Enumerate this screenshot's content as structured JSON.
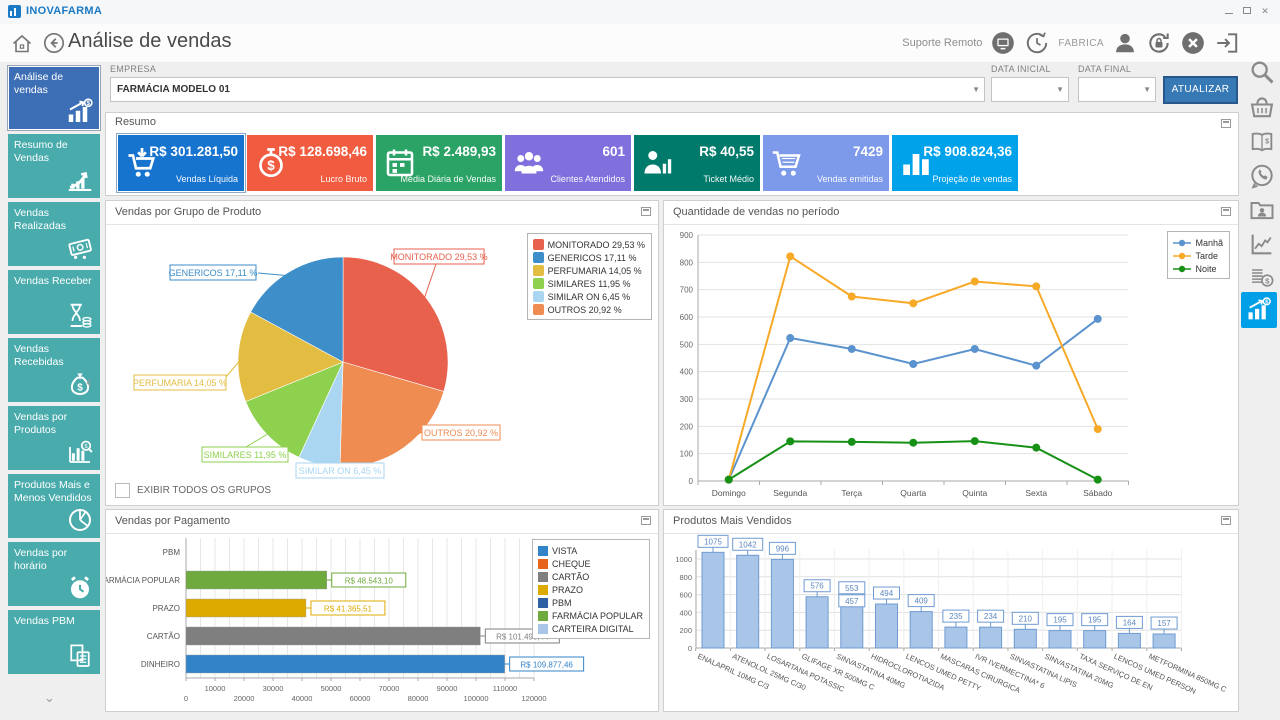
{
  "titlebar": {
    "app_name": "INOVAFARMA"
  },
  "header": {
    "title": "Análise de vendas",
    "suporte_remoto_label": "Suporte Remoto",
    "user_label": "FABRICA",
    "icons": [
      "home-icon",
      "back-icon",
      "remote-monitor-icon",
      "history-icon",
      "user-icon",
      "lock-refresh-icon",
      "close-icon",
      "exit-icon"
    ]
  },
  "sidebar": {
    "items": [
      {
        "label": "Análise de vendas",
        "icon": "sales-analysis",
        "active": true
      },
      {
        "label": "Resumo de Vendas",
        "icon": "growth"
      },
      {
        "label": "Vendas Realizadas",
        "icon": "money-note"
      },
      {
        "label": "Vendas Receber",
        "icon": "hourglass-money"
      },
      {
        "label": "Vendas Recebidas",
        "icon": "money-bag"
      },
      {
        "label": "Vendas por Produtos",
        "icon": "chart-search"
      },
      {
        "label": "Produtos Mais e Menos Vendidos",
        "icon": "pie"
      },
      {
        "label": "Vendas por horário",
        "icon": "alarm"
      },
      {
        "label": "Vendas PBM",
        "icon": "docs"
      }
    ]
  },
  "rightbar": {
    "icons": [
      {
        "name": "search-icon",
        "icon": "search"
      },
      {
        "name": "basket-icon",
        "icon": "basket"
      },
      {
        "name": "price-book-icon",
        "icon": "book"
      },
      {
        "name": "whatsapp-icon",
        "icon": "whatsapp"
      },
      {
        "name": "contacts-folder-icon",
        "icon": "folder-user"
      },
      {
        "name": "stats-icon",
        "icon": "stats"
      },
      {
        "name": "coins-icon",
        "icon": "coins"
      },
      {
        "name": "sales-analysis-active-icon",
        "icon": "sales-analysis",
        "active": true
      }
    ]
  },
  "filters": {
    "empresa_label": "EMPRESA",
    "empresa_value": "FARMÁCIA MODELO 01",
    "data_inicial_label": "DATA INICIAL",
    "data_inicial_value": "",
    "data_final_label": "DATA FINAL",
    "data_final_value": "",
    "atualizar_label": "ATUALIZAR"
  },
  "resumo": {
    "title": "Resumo",
    "cards": [
      {
        "value": "R$ 301.281,50",
        "label": "Vendas Líquida",
        "color": "#1673ce",
        "icon": "cart-down",
        "selected": true
      },
      {
        "value": "R$ 128.698,46",
        "label": "Lucro Bruto",
        "color": "#f15b40",
        "icon": "stopwatch"
      },
      {
        "value": "R$ 2.489,93",
        "label": "Média Diária de Vendas",
        "color": "#2ba367",
        "icon": "calendar"
      },
      {
        "value": "601",
        "label": "Clientes Atendidos",
        "color": "#8070dd",
        "icon": "users"
      },
      {
        "value": "R$ 40,55",
        "label": "Ticket Médio",
        "color": "#007a6b",
        "icon": "person-chart"
      },
      {
        "value": "7429",
        "label": "Vendas emitidas",
        "color": "#7d99ea",
        "icon": "cart"
      },
      {
        "value": "R$ 908.824,36",
        "label": "Projeção de vendas",
        "color": "#00a2e9",
        "icon": "bars"
      }
    ]
  },
  "chart_data": [
    {
      "type": "pie",
      "title": "Vendas por Grupo de Produto",
      "slices": [
        {
          "label": "MONITORADO",
          "pct": 29.53,
          "text": "MONITORADO 29,53 %",
          "color": "#e8614d"
        },
        {
          "label": "GENERICOS",
          "pct": 17.11,
          "text": "GENERICOS 17,11 %",
          "color": "#3d8ec9"
        },
        {
          "label": "PERFUMARIA",
          "pct": 14.05,
          "text": "PERFUMARIA 14,05 %",
          "color": "#e3bc42"
        },
        {
          "label": "SIMILARES",
          "pct": 11.95,
          "text": "SIMILARES 11,95 %",
          "color": "#8ed14f"
        },
        {
          "label": "SIMILAR ON",
          "pct": 6.45,
          "text": "SIMILAR ON 6,45 %",
          "color": "#aad6f2"
        },
        {
          "label": "OUTROS",
          "pct": 20.92,
          "text": "OUTROS 20,92 %",
          "color": "#ef8c51"
        }
      ],
      "clockwise_order_from_top": [
        0,
        5,
        4,
        3,
        2,
        1
      ],
      "legend_position": "top-right",
      "checkbox_label": "EXIBIR TODOS OS GRUPOS",
      "checkbox_checked": false
    },
    {
      "type": "line",
      "title": "Quantidade de vendas no período",
      "x": [
        "Domingo",
        "Segunda",
        "Terça",
        "Quarta",
        "Quinta",
        "Sexta",
        "Sábado"
      ],
      "series": [
        {
          "name": "Manhã",
          "color": "#5b93ce",
          "values": [
            5,
            523,
            483,
            428,
            483,
            422,
            593
          ]
        },
        {
          "name": "Tarde",
          "color": "#f7a928",
          "values": [
            5,
            822,
            675,
            650,
            730,
            712,
            190
          ]
        },
        {
          "name": "Noite",
          "color": "#169116",
          "values": [
            5,
            145,
            143,
            140,
            146,
            122,
            5
          ]
        }
      ],
      "ylim": [
        0,
        900
      ],
      "ytick_step": 100,
      "grid": "horizontal",
      "legend_position": "top-right"
    },
    {
      "type": "bar-h",
      "title": "Vendas por Pagamento",
      "categories": [
        "PBM",
        "FARMÁCIA POPULAR",
        "PRAZO",
        "CARTÃO",
        "DINHEIRO"
      ],
      "values": [
        0,
        48543.1,
        41365.51,
        101495.44,
        109877.46
      ],
      "value_labels": [
        "",
        "R$ 48.543,10",
        "R$ 41.365,51",
        "R$ 101.495,44",
        "R$ 109.877,46"
      ],
      "bar_colors": [
        "#2e5fa3",
        "#6faa3e",
        "#ddab00",
        "#7f7f7f",
        "#3383c8"
      ],
      "xlim": [
        0,
        120000
      ],
      "xticks": [
        0,
        10000,
        20000,
        30000,
        40000,
        50000,
        60000,
        70000,
        80000,
        90000,
        100000,
        110000,
        120000
      ],
      "legend": [
        {
          "label": "VISTA",
          "color": "#3383c8"
        },
        {
          "label": "CHEQUE",
          "color": "#e8641b"
        },
        {
          "label": "CARTÃO",
          "color": "#7f7f7f"
        },
        {
          "label": "PRAZO",
          "color": "#ddab00"
        },
        {
          "label": "PBM",
          "color": "#2e5fa3"
        },
        {
          "label": "FARMÁCIA POPULAR",
          "color": "#6faa3e"
        },
        {
          "label": "CARTEIRA DIGITAL",
          "color": "#a9c6e8"
        }
      ]
    },
    {
      "type": "bar-v",
      "title": "Produtos Mais Vendidos",
      "categories": [
        "ENALAPRIL 10MG C/3",
        "ATENOLOL 25MG C/30",
        "LOSARTANA POTASSIC",
        "GLIFAGE XR 500MG C",
        "SINVASTATINA 40MG",
        "HIDROCLOROTIAZIDA",
        "LENCOS UMED PETTY",
        "MASCARAS CIRURGICA",
        "IVR IVERMECTINA* 6",
        "SINVASTATINA LIPIS",
        "SINVASTATINA 20MG",
        "TAXA SERVIÇO DE EN",
        "LENCOS UMED PERSON",
        "METFORMINA 850MG C"
      ],
      "values": [
        1075,
        1042,
        996,
        576,
        553,
        494,
        409,
        235,
        234,
        210,
        195,
        195,
        164,
        157
      ],
      "overlap_label": {
        "index": 4,
        "value": 457
      },
      "bar_fill": "#a9c6e8",
      "bar_border": "#6f9bd1",
      "ylim": [
        0,
        1000
      ],
      "ytick_step": 200
    }
  ]
}
